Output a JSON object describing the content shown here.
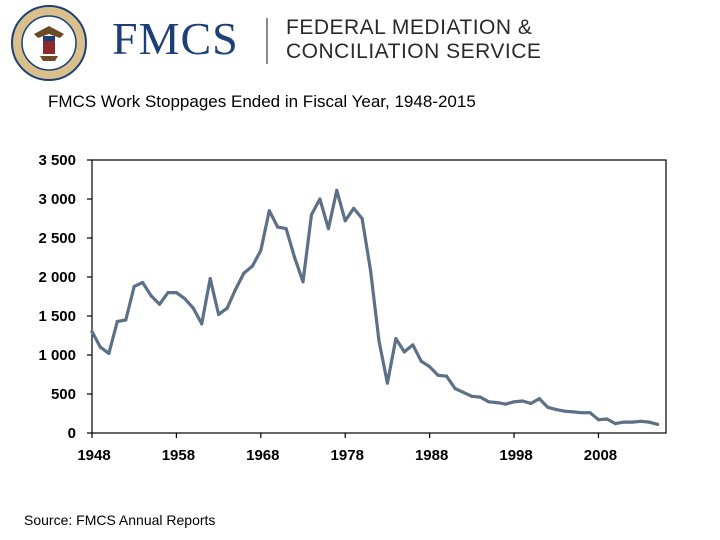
{
  "header": {
    "logo_text": "FMCS",
    "agency_line1": "FEDERAL MEDIATION &",
    "agency_line2": "CONCILIATION SERVICE",
    "seal_icon": "fmcs-seal-icon"
  },
  "colors": {
    "brand_blue": "#1c3f78",
    "line": "#5c7088",
    "axis": "#000000"
  },
  "chart_data": {
    "type": "line",
    "title": "FMCS Work Stoppages Ended in Fiscal Year, 1948-2015",
    "xlabel": "",
    "ylabel": "",
    "x": [
      1948,
      1949,
      1950,
      1951,
      1952,
      1953,
      1954,
      1955,
      1956,
      1957,
      1958,
      1959,
      1960,
      1961,
      1962,
      1963,
      1964,
      1965,
      1966,
      1967,
      1968,
      1969,
      1970,
      1971,
      1972,
      1973,
      1974,
      1975,
      1976,
      1977,
      1978,
      1979,
      1980,
      1981,
      1982,
      1983,
      1984,
      1985,
      1986,
      1987,
      1988,
      1989,
      1990,
      1991,
      1992,
      1993,
      1994,
      1995,
      1996,
      1997,
      1998,
      1999,
      2000,
      2001,
      2002,
      2003,
      2004,
      2005,
      2006,
      2007,
      2008,
      2009,
      2010,
      2011,
      2012,
      2013,
      2014,
      2015
    ],
    "y": [
      1300,
      1100,
      1020,
      1430,
      1450,
      1880,
      1930,
      1760,
      1650,
      1800,
      1800,
      1720,
      1600,
      1400,
      1980,
      1520,
      1600,
      1840,
      2050,
      2140,
      2340,
      2850,
      2640,
      2620,
      2250,
      1940,
      2800,
      3000,
      2620,
      3110,
      2720,
      2880,
      2750,
      2080,
      1180,
      640,
      1210,
      1040,
      1130,
      920,
      850,
      740,
      730,
      570,
      520,
      470,
      460,
      400,
      390,
      370,
      400,
      410,
      380,
      440,
      330,
      300,
      280,
      270,
      260,
      260,
      170,
      180,
      120,
      140,
      140,
      150,
      140,
      110
    ],
    "x_ticks": [
      "1948",
      "1958",
      "1968",
      "1978",
      "1988",
      "1998",
      "2008"
    ],
    "y_ticks": [
      "0",
      "500",
      "1 000",
      "1 500",
      "2 000",
      "2 500",
      "3 000",
      "3 500"
    ],
    "xlim": [
      1948,
      2016
    ],
    "ylim": [
      0,
      3500
    ],
    "grid": false,
    "legend": "none"
  },
  "source": "Source: FMCS Annual Reports"
}
